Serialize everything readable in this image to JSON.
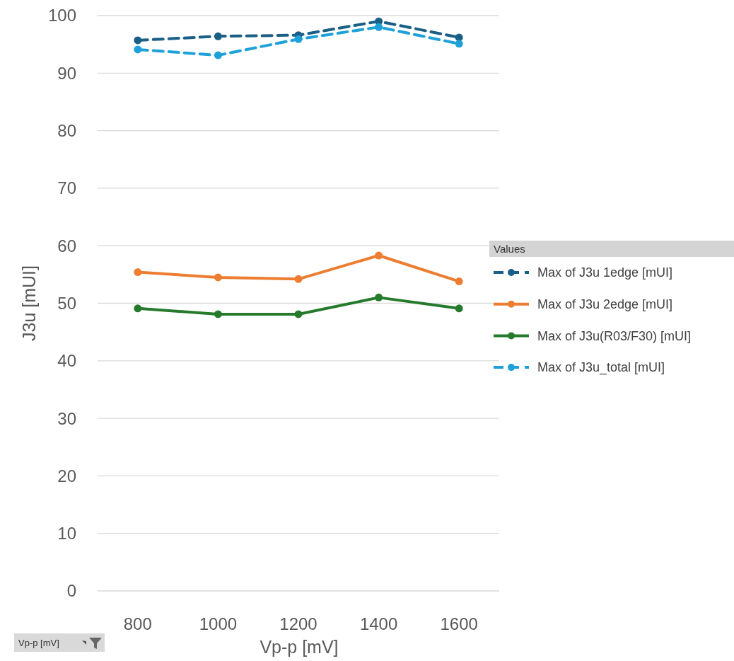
{
  "chart_data": {
    "type": "line",
    "xlabel": "Vp-p [mV]",
    "ylabel": "J3u [mUI]",
    "legend_title": "Values",
    "categories": [
      "800",
      "1000",
      "1200",
      "1400",
      "1600"
    ],
    "ylim": [
      0,
      100
    ],
    "yticks": [
      0,
      10,
      20,
      30,
      40,
      50,
      60,
      70,
      80,
      90,
      100
    ],
    "grid": "y",
    "legend": "right",
    "marker": "circle",
    "annotations": [
      "Vp-p [mV]"
    ],
    "series": [
      {
        "name": "Max of J3u 1edge [mUI]",
        "color": "#1b5f86",
        "line_style": "dashed",
        "values": [
          95.7,
          96.4,
          96.6,
          99.0,
          96.2
        ]
      },
      {
        "name": "Max of J3u 2edge [mUI]",
        "color": "#ed7d31",
        "line_style": "solid",
        "values": [
          55.4,
          54.5,
          54.2,
          58.3,
          53.8
        ]
      },
      {
        "name": "Max of J3u(R03/F30) [mUI]",
        "color": "#267a2c",
        "line_style": "solid",
        "values": [
          49.1,
          48.1,
          48.1,
          51.0,
          49.1
        ]
      },
      {
        "name": "Max of J3u_total [mUI]",
        "color": "#1ea1d9",
        "line_style": "dashed",
        "values": [
          94.1,
          93.1,
          95.9,
          98.0,
          95.1
        ]
      }
    ]
  }
}
